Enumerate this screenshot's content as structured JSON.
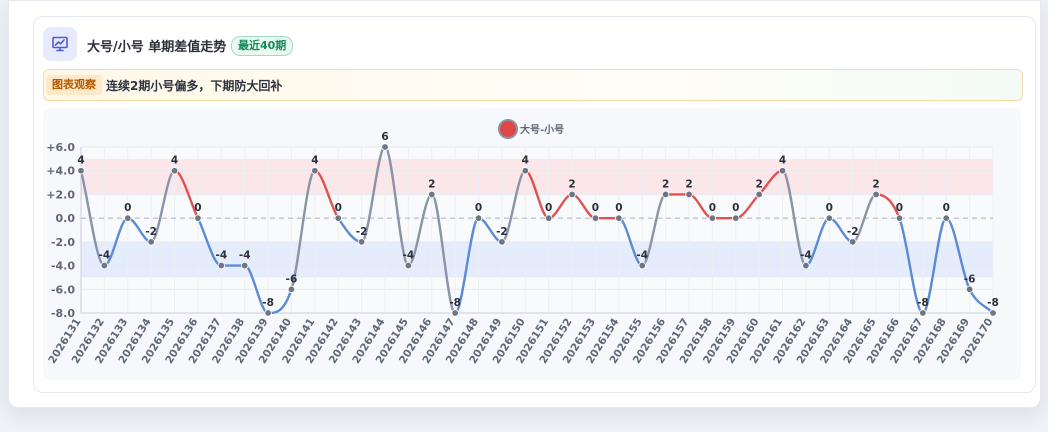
{
  "header": {
    "title": "大号/小号 单期差值走势",
    "badge": "最近40期",
    "icon": "trend-chart-icon"
  },
  "observation": {
    "tag": "图表观察",
    "text": "连续2期小号偏多，下期防大回补"
  },
  "colors": {
    "positive": "#e05252",
    "negative": "#5b8bd6",
    "neutral": "#8a94a6",
    "positive_band": "#fbe3e6",
    "negative_band": "#e2e9fb",
    "legend": "#e04848"
  },
  "chart_data": {
    "type": "line",
    "title": "",
    "xlabel": "",
    "ylabel": "",
    "ylim": [
      -8,
      6
    ],
    "yticks": [
      6,
      4,
      2,
      0,
      -2,
      -4,
      -6,
      -8
    ],
    "ytick_labels": [
      "+6.0",
      "+4.0",
      "+2.0",
      "0.0",
      "-2.0",
      "-4.0",
      "-6.0",
      "-8.0"
    ],
    "bands": [
      {
        "from": 2,
        "to": 5,
        "color": "positive"
      },
      {
        "from": -5,
        "to": -2,
        "color": "negative"
      }
    ],
    "legend_position": "top-center",
    "grid": true,
    "x": [
      "2026131",
      "2026132",
      "2026133",
      "2026134",
      "2026135",
      "2026136",
      "2026137",
      "2026138",
      "2026139",
      "2026140",
      "2026141",
      "2026142",
      "2026143",
      "2026144",
      "2026145",
      "2026146",
      "2026147",
      "2026148",
      "2026149",
      "2026150",
      "2026151",
      "2026152",
      "2026153",
      "2026154",
      "2026155",
      "2026156",
      "2026157",
      "2026158",
      "2026159",
      "2026160",
      "2026161",
      "2026162",
      "2026163",
      "2026164",
      "2026165",
      "2026166",
      "2026167",
      "2026168",
      "2026169",
      "2026170"
    ],
    "series": [
      {
        "name": "大号-小号",
        "values": [
          4,
          -4,
          0,
          -2,
          4,
          0,
          -4,
          -4,
          -8,
          -6,
          4,
          0,
          -2,
          6,
          -4,
          2,
          -8,
          0,
          -2,
          4,
          0,
          2,
          0,
          0,
          -4,
          2,
          2,
          0,
          0,
          2,
          4,
          -4,
          0,
          -2,
          2,
          0,
          -8,
          0,
          -6,
          -8
        ]
      }
    ]
  }
}
